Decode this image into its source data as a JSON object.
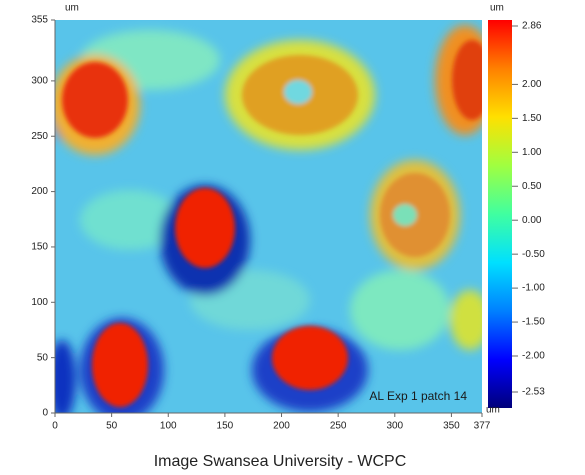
{
  "chart_data": {
    "type": "heatmap",
    "x_unit": "um",
    "y_unit": "um",
    "colorbar_unit": "um",
    "xlim": [
      0,
      377
    ],
    "xticks": [
      0,
      50,
      100,
      150,
      200,
      250,
      300,
      350,
      377
    ],
    "ylim": [
      0,
      355
    ],
    "yticks": [
      0,
      50,
      100,
      150,
      200,
      250,
      300,
      355
    ],
    "clim": [
      -2.53,
      2.86
    ],
    "cticks": [
      2.86,
      {
        "value": 2,
        "label": "2.00"
      },
      {
        "value": 1.5,
        "label": "1.50"
      },
      {
        "value": 1,
        "label": "1.00"
      },
      {
        "value": 0.5,
        "label": "0.50"
      },
      {
        "value": 0,
        "label": "0.00"
      },
      {
        "value": -0.5,
        "label": "-0.50"
      },
      {
        "value": -1,
        "label": "-1.00"
      },
      {
        "value": -1.5,
        "label": "-1.50"
      },
      {
        "value": -2,
        "label": "-2.00"
      },
      -2.53
    ],
    "colormap": [
      "#00007a",
      "#0000ff",
      "#0080ff",
      "#00e0ff",
      "#40ffa0",
      "#a0ff40",
      "#ffe000",
      "#ff8000",
      "#ff0000"
    ],
    "annotation": "AL Exp 1 patch 14"
  },
  "caption": "Image Swansea University - WCPC"
}
